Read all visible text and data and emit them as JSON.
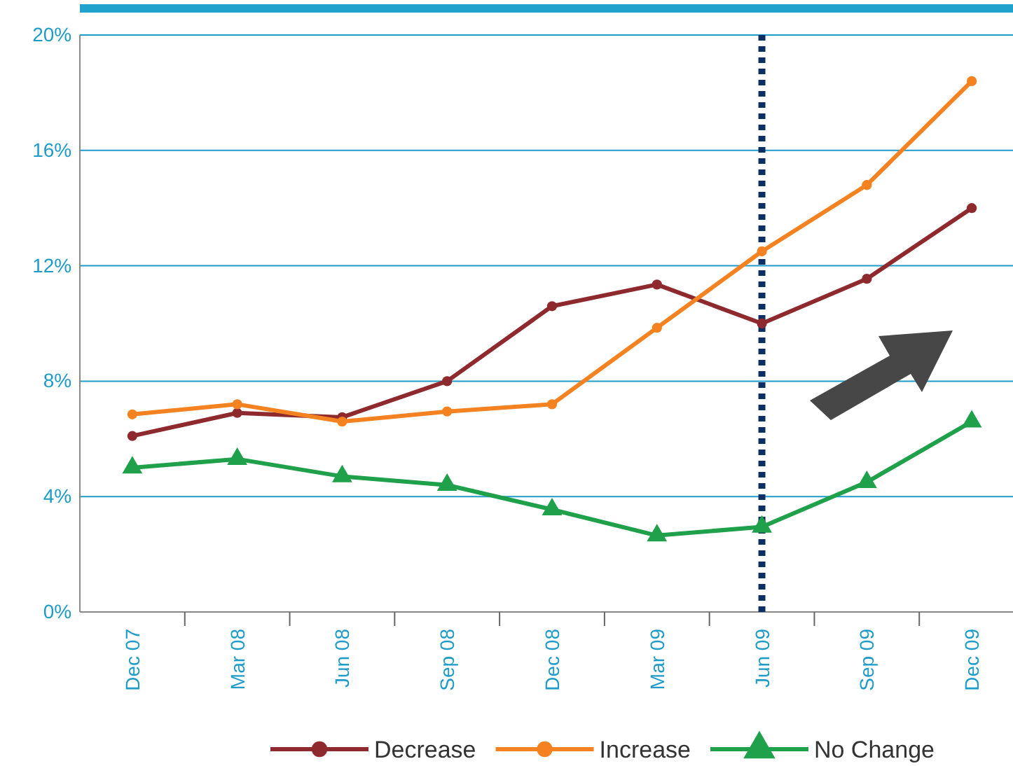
{
  "chart_data": {
    "type": "line",
    "categories": [
      "Dec 07",
      "Mar 08",
      "Jun 08",
      "Sep 08",
      "Dec 08",
      "Mar 09",
      "Jun 09",
      "Sep 09",
      "Dec 09"
    ],
    "series": [
      {
        "name": "Decrease",
        "color": "#8e2a2e",
        "marker": "circle",
        "values": [
          6.1,
          6.9,
          6.75,
          8.0,
          10.6,
          11.35,
          10.0,
          11.55,
          14.0
        ]
      },
      {
        "name": "Increase",
        "color": "#f58220",
        "marker": "circle",
        "values": [
          6.85,
          7.2,
          6.6,
          6.95,
          7.2,
          9.85,
          12.5,
          14.8,
          18.4
        ]
      },
      {
        "name": "No Change",
        "color": "#1fa04a",
        "marker": "triangle",
        "values": [
          5.0,
          5.3,
          4.7,
          4.4,
          3.55,
          2.65,
          2.95,
          4.5,
          6.6
        ]
      }
    ],
    "ylim": [
      0,
      20
    ],
    "yticks": [
      {
        "value": 0,
        "label": "0%"
      },
      {
        "value": 4,
        "label": "4%"
      },
      {
        "value": 8,
        "label": "8%"
      },
      {
        "value": 12,
        "label": "12%"
      },
      {
        "value": 16,
        "label": "16%"
      },
      {
        "value": 20,
        "label": "20%"
      }
    ],
    "grid": "y",
    "legend": "bottom",
    "line_style": "solid",
    "ref_lines": [
      {
        "axis": "x",
        "value": "Jun 09",
        "color": "#0d2f63",
        "line_style": "dotted"
      }
    ]
  }
}
